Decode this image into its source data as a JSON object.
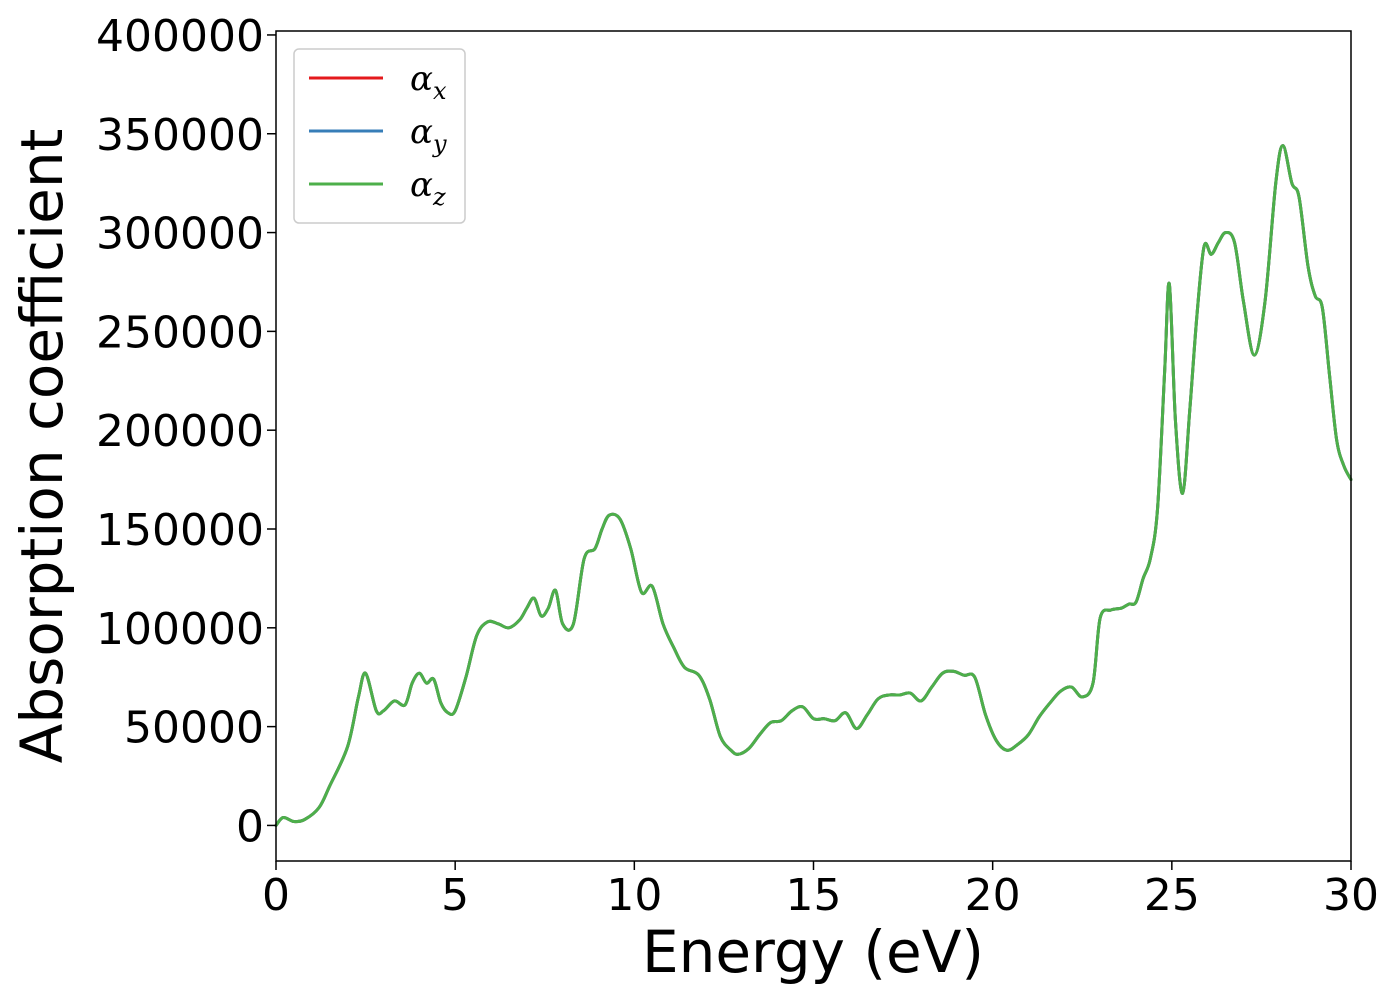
{
  "chart_data": {
    "type": "line",
    "xlabel": "Energy (eV)",
    "ylabel": "Absorption coefficient",
    "xlim": [
      0,
      30
    ],
    "ylim": [
      -18000,
      402000
    ],
    "x_ticks": [
      0,
      5,
      10,
      15,
      20,
      25,
      30
    ],
    "y_ticks": [
      0,
      50000,
      100000,
      150000,
      200000,
      250000,
      300000,
      350000,
      400000
    ],
    "grid": false,
    "legend_position": "upper-left",
    "series": [
      {
        "name": "α",
        "subscript": "x",
        "color": "#e41a1c",
        "x": [
          0.0,
          0.2,
          0.5,
          0.8,
          1.2,
          1.5,
          2.0,
          2.3,
          2.5,
          2.8,
          3.0,
          3.3,
          3.6,
          3.8,
          4.0,
          4.2,
          4.4,
          4.6,
          4.8,
          5.0,
          5.3,
          5.6,
          5.9,
          6.2,
          6.5,
          6.8,
          7.0,
          7.2,
          7.4,
          7.6,
          7.8,
          8.0,
          8.3,
          8.6,
          8.9,
          9.1,
          9.3,
          9.6,
          9.9,
          10.2,
          10.5,
          10.8,
          11.1,
          11.4,
          11.8,
          12.1,
          12.4,
          12.7,
          12.9,
          13.2,
          13.5,
          13.8,
          14.1,
          14.4,
          14.7,
          15.0,
          15.3,
          15.6,
          15.9,
          16.2,
          16.5,
          16.8,
          17.1,
          17.4,
          17.7,
          18.0,
          18.3,
          18.6,
          18.9,
          19.2,
          19.5,
          19.8,
          20.1,
          20.4,
          20.7,
          21.0,
          21.3,
          21.6,
          21.9,
          22.2,
          22.5,
          22.8,
          23.0,
          23.3,
          23.6,
          23.8,
          24.0,
          24.2,
          24.4,
          24.6,
          24.8,
          24.93,
          25.1,
          25.3,
          25.5,
          25.7,
          25.9,
          26.1,
          26.3,
          26.5,
          26.75,
          27.0,
          27.3,
          27.6,
          27.9,
          28.1,
          28.35,
          28.55,
          28.8,
          29.0,
          29.2,
          29.4,
          29.6,
          29.8,
          30.0
        ],
        "y": [
          0,
          4000,
          2000,
          3000,
          9000,
          20000,
          40000,
          65000,
          77000,
          58000,
          58000,
          63000,
          61000,
          72000,
          77000,
          72000,
          74000,
          62000,
          57000,
          58000,
          75000,
          96000,
          103000,
          102000,
          100000,
          104000,
          110000,
          115000,
          106000,
          110000,
          119000,
          102000,
          102000,
          135000,
          140000,
          150000,
          157000,
          155000,
          140000,
          118000,
          121000,
          102000,
          90000,
          80000,
          76000,
          64000,
          45000,
          38000,
          36000,
          39000,
          46000,
          52000,
          53000,
          58000,
          60000,
          54000,
          54000,
          53000,
          57000,
          49000,
          56000,
          64000,
          66000,
          66000,
          67000,
          63000,
          70000,
          77000,
          78000,
          76000,
          75000,
          56000,
          43000,
          38000,
          41000,
          46000,
          55000,
          62000,
          68000,
          70000,
          65000,
          72000,
          105000,
          109000,
          110000,
          112000,
          113000,
          125000,
          135000,
          160000,
          230000,
          274000,
          205000,
          168000,
          210000,
          258000,
          293000,
          289000,
          295000,
          300000,
          295000,
          265000,
          238000,
          265000,
          325000,
          344000,
          325000,
          318000,
          283000,
          268000,
          262000,
          228000,
          195000,
          182000,
          175000
        ]
      },
      {
        "name": "α",
        "subscript": "y",
        "color": "#377eb8",
        "x": [
          0.0,
          0.2,
          0.5,
          0.8,
          1.2,
          1.5,
          2.0,
          2.3,
          2.5,
          2.8,
          3.0,
          3.3,
          3.6,
          3.8,
          4.0,
          4.2,
          4.4,
          4.6,
          4.8,
          5.0,
          5.3,
          5.6,
          5.9,
          6.2,
          6.5,
          6.8,
          7.0,
          7.2,
          7.4,
          7.6,
          7.8,
          8.0,
          8.3,
          8.6,
          8.9,
          9.1,
          9.3,
          9.6,
          9.9,
          10.2,
          10.5,
          10.8,
          11.1,
          11.4,
          11.8,
          12.1,
          12.4,
          12.7,
          12.9,
          13.2,
          13.5,
          13.8,
          14.1,
          14.4,
          14.7,
          15.0,
          15.3,
          15.6,
          15.9,
          16.2,
          16.5,
          16.8,
          17.1,
          17.4,
          17.7,
          18.0,
          18.3,
          18.6,
          18.9,
          19.2,
          19.5,
          19.8,
          20.1,
          20.4,
          20.7,
          21.0,
          21.3,
          21.6,
          21.9,
          22.2,
          22.5,
          22.8,
          23.0,
          23.3,
          23.6,
          23.8,
          24.0,
          24.2,
          24.4,
          24.6,
          24.8,
          24.93,
          25.1,
          25.3,
          25.5,
          25.7,
          25.9,
          26.1,
          26.3,
          26.5,
          26.75,
          27.0,
          27.3,
          27.6,
          27.9,
          28.1,
          28.35,
          28.55,
          28.8,
          29.0,
          29.2,
          29.4,
          29.6,
          29.8,
          30.0
        ],
        "y": [
          0,
          4000,
          2000,
          3000,
          9000,
          20000,
          40000,
          65000,
          77000,
          58000,
          58000,
          63000,
          61000,
          72000,
          77000,
          72000,
          74000,
          62000,
          57000,
          58000,
          75000,
          96000,
          103000,
          102000,
          100000,
          104000,
          110000,
          115000,
          106000,
          110000,
          119000,
          102000,
          102000,
          135000,
          140000,
          150000,
          157000,
          155000,
          140000,
          118000,
          121000,
          102000,
          90000,
          80000,
          76000,
          64000,
          45000,
          38000,
          36000,
          39000,
          46000,
          52000,
          53000,
          58000,
          60000,
          54000,
          54000,
          53000,
          57000,
          49000,
          56000,
          64000,
          66000,
          66000,
          67000,
          63000,
          70000,
          77000,
          78000,
          76000,
          75000,
          56000,
          43000,
          38000,
          41000,
          46000,
          55000,
          62000,
          68000,
          70000,
          65000,
          72000,
          105000,
          109000,
          110000,
          112000,
          113000,
          125000,
          135000,
          160000,
          230000,
          274000,
          205000,
          168000,
          210000,
          258000,
          293000,
          289000,
          295000,
          300000,
          295000,
          265000,
          238000,
          265000,
          325000,
          344000,
          325000,
          318000,
          283000,
          268000,
          262000,
          228000,
          195000,
          182000,
          175000
        ]
      },
      {
        "name": "α",
        "subscript": "z",
        "color": "#4daf4a",
        "x": [
          0.0,
          0.2,
          0.5,
          0.8,
          1.2,
          1.5,
          2.0,
          2.3,
          2.5,
          2.8,
          3.0,
          3.3,
          3.6,
          3.8,
          4.0,
          4.2,
          4.4,
          4.6,
          4.8,
          5.0,
          5.3,
          5.6,
          5.9,
          6.2,
          6.5,
          6.8,
          7.0,
          7.2,
          7.4,
          7.6,
          7.8,
          8.0,
          8.3,
          8.6,
          8.9,
          9.1,
          9.3,
          9.6,
          9.9,
          10.2,
          10.5,
          10.8,
          11.1,
          11.4,
          11.8,
          12.1,
          12.4,
          12.7,
          12.9,
          13.2,
          13.5,
          13.8,
          14.1,
          14.4,
          14.7,
          15.0,
          15.3,
          15.6,
          15.9,
          16.2,
          16.5,
          16.8,
          17.1,
          17.4,
          17.7,
          18.0,
          18.3,
          18.6,
          18.9,
          19.2,
          19.5,
          19.8,
          20.1,
          20.4,
          20.7,
          21.0,
          21.3,
          21.6,
          21.9,
          22.2,
          22.5,
          22.8,
          23.0,
          23.3,
          23.6,
          23.8,
          24.0,
          24.2,
          24.4,
          24.6,
          24.8,
          24.93,
          25.1,
          25.3,
          25.5,
          25.7,
          25.9,
          26.1,
          26.3,
          26.5,
          26.75,
          27.0,
          27.3,
          27.6,
          27.9,
          28.1,
          28.35,
          28.55,
          28.8,
          29.0,
          29.2,
          29.4,
          29.6,
          29.8,
          30.0
        ],
        "y": [
          0,
          4000,
          2000,
          3000,
          9000,
          20000,
          40000,
          65000,
          77000,
          58000,
          58000,
          63000,
          61000,
          72000,
          77000,
          72000,
          74000,
          62000,
          57000,
          58000,
          75000,
          96000,
          103000,
          102000,
          100000,
          104000,
          110000,
          115000,
          106000,
          110000,
          119000,
          102000,
          102000,
          135000,
          140000,
          150000,
          157000,
          155000,
          140000,
          118000,
          121000,
          102000,
          90000,
          80000,
          76000,
          64000,
          45000,
          38000,
          36000,
          39000,
          46000,
          52000,
          53000,
          58000,
          60000,
          54000,
          54000,
          53000,
          57000,
          49000,
          56000,
          64000,
          66000,
          66000,
          67000,
          63000,
          70000,
          77000,
          78000,
          76000,
          75000,
          56000,
          43000,
          38000,
          41000,
          46000,
          55000,
          62000,
          68000,
          70000,
          65000,
          72000,
          105000,
          109000,
          110000,
          112000,
          113000,
          125000,
          135000,
          160000,
          230000,
          274000,
          205000,
          168000,
          210000,
          258000,
          293000,
          289000,
          295000,
          300000,
          295000,
          265000,
          238000,
          265000,
          325000,
          344000,
          325000,
          318000,
          283000,
          268000,
          262000,
          228000,
          195000,
          182000,
          175000
        ]
      }
    ]
  }
}
